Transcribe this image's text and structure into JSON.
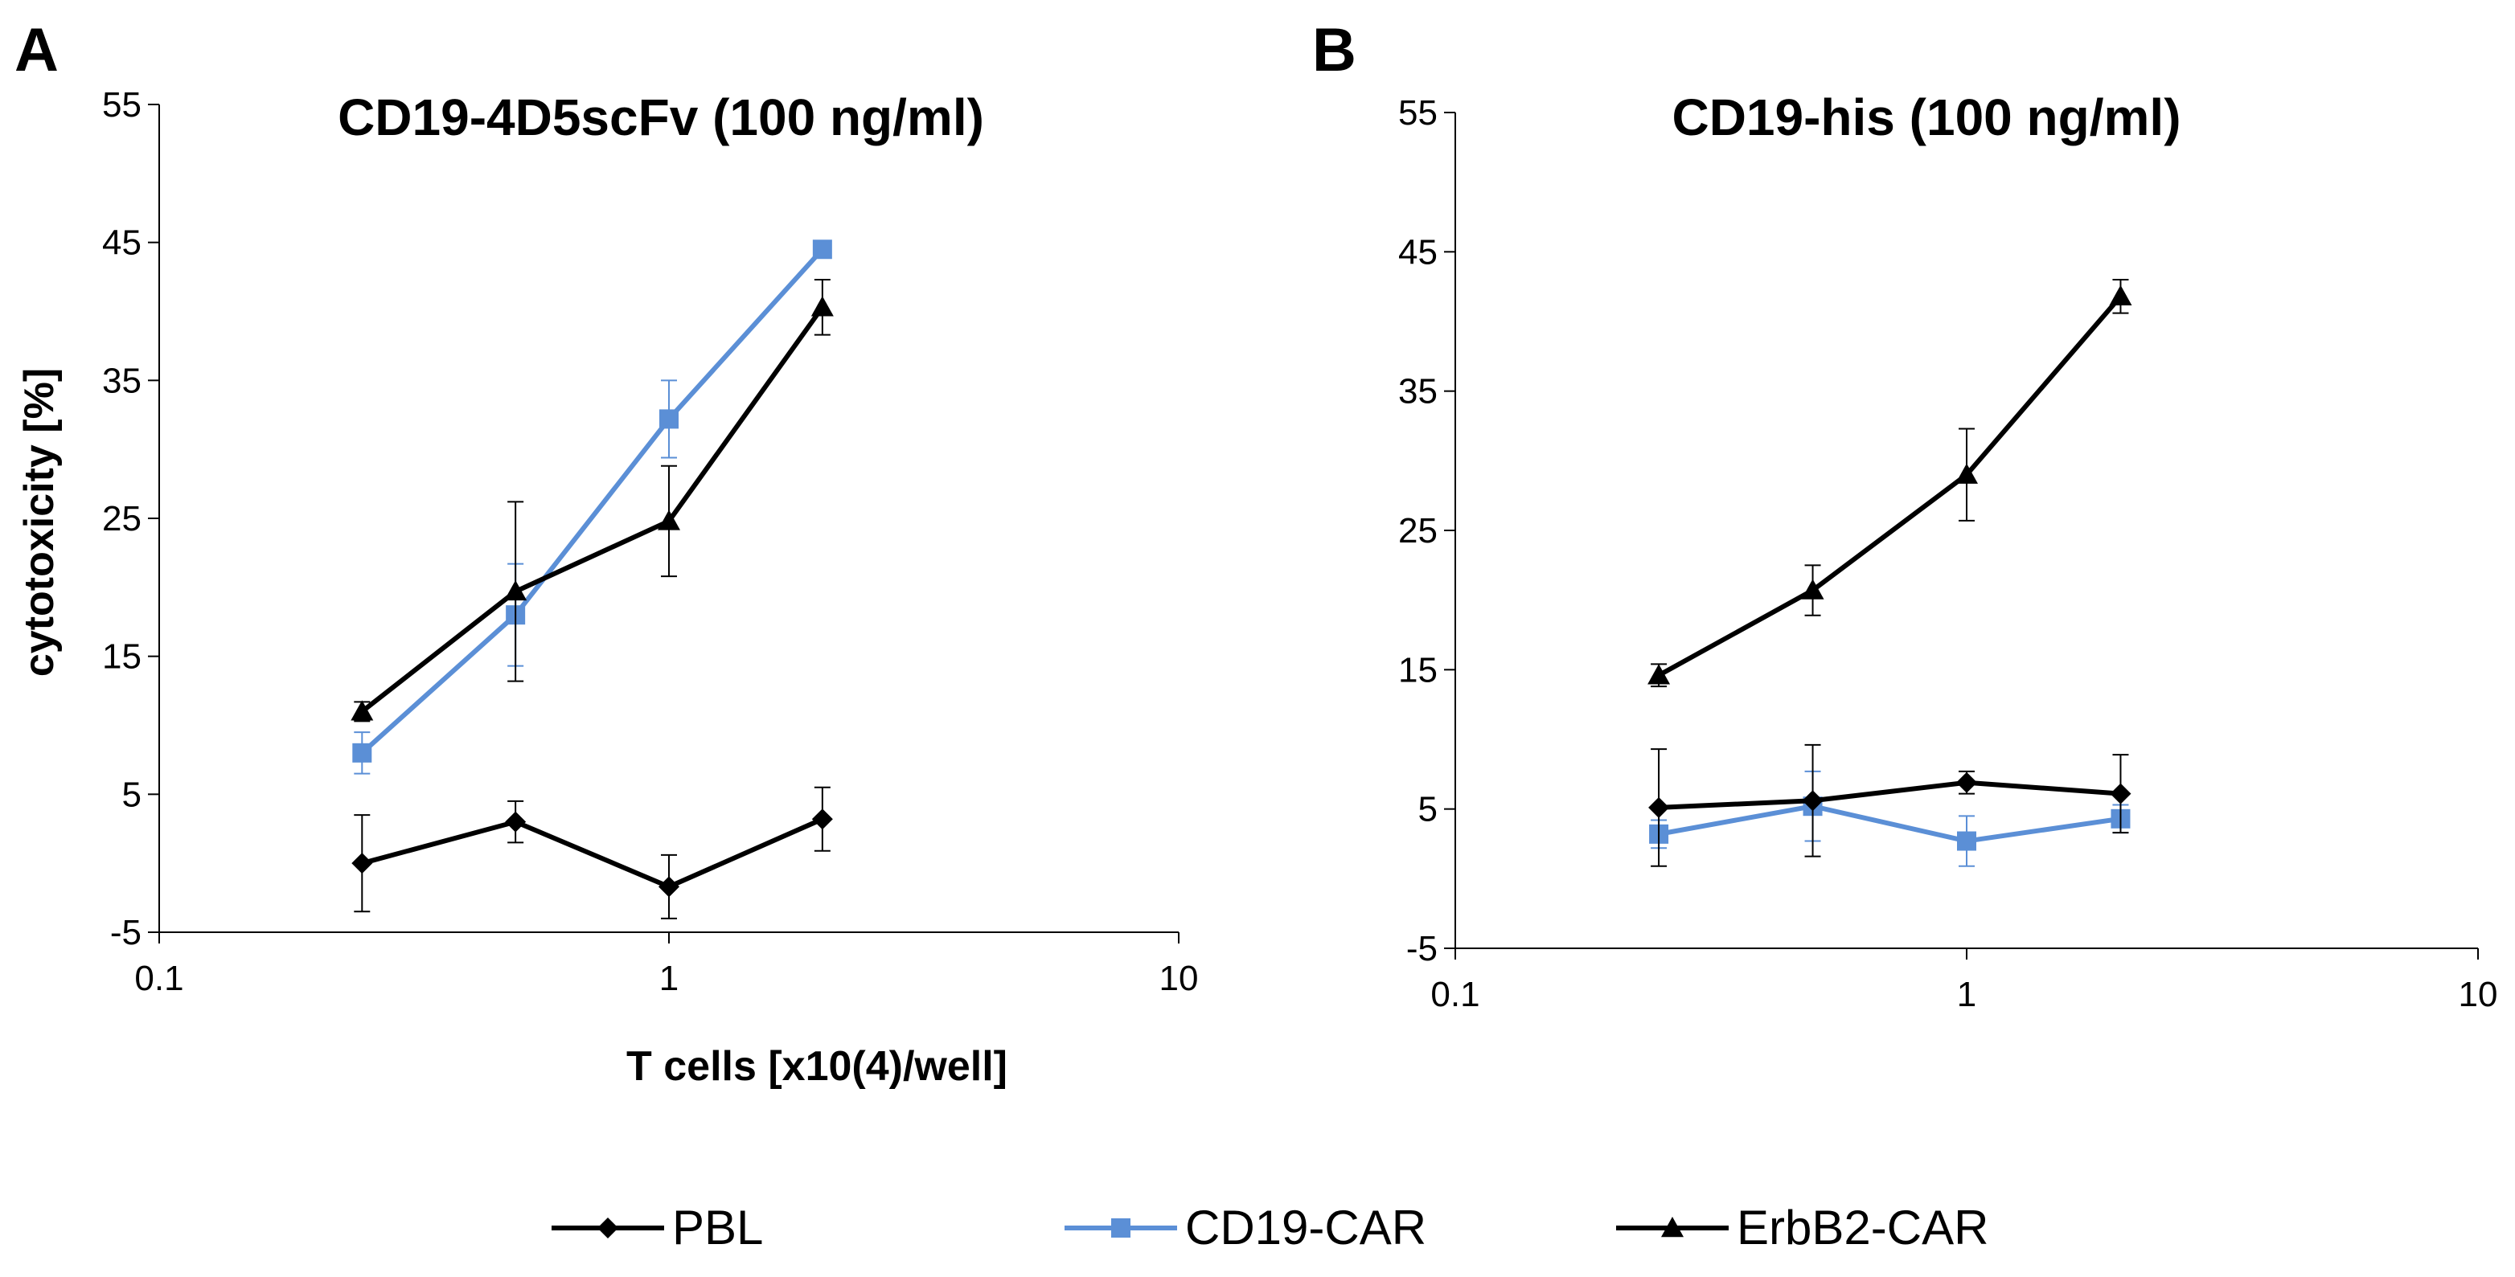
{
  "figure": {
    "shared_xlabel": "T cells [x10(4)/well]",
    "shared_ylabel": "cytotoxicity [%]",
    "legend": [
      {
        "label": "PBL",
        "color": "#000000",
        "marker": "diamond"
      },
      {
        "label": "CD19-CAR",
        "color": "#5b8fd6",
        "marker": "square"
      },
      {
        "label": "ErbB2-CAR",
        "color": "#000000",
        "marker": "triangle"
      }
    ]
  },
  "chart_data": [
    {
      "type": "line",
      "panel": "A",
      "title": "CD19-4D5scFv (100 ng/ml)",
      "xscale": "log",
      "xlim": [
        0.1,
        10
      ],
      "xticks": [
        "0.1",
        "1",
        "10"
      ],
      "ylim": [
        -5,
        55
      ],
      "yticks": [
        "-5",
        "5",
        "15",
        "25",
        "35",
        "45",
        "55"
      ],
      "x": [
        0.25,
        0.5,
        1,
        2
      ],
      "series": [
        {
          "name": "PBL",
          "color": "#000000",
          "marker": "diamond",
          "values": [
            0,
            3,
            -1.7,
            3.2
          ],
          "errors": [
            3.5,
            1.5,
            2.3,
            2.3
          ]
        },
        {
          "name": "CD19-CAR",
          "color": "#5b8fd6",
          "marker": "square",
          "values": [
            8,
            18,
            32.2,
            44.5
          ],
          "errors": [
            1.5,
            3.7,
            2.8,
            0.5
          ]
        },
        {
          "name": "ErbB2-CAR",
          "color": "#000000",
          "marker": "triangle",
          "values": [
            11,
            19.7,
            24.8,
            40.3
          ],
          "errors": [
            0.7,
            6.5,
            4,
            2
          ]
        }
      ]
    },
    {
      "type": "line",
      "panel": "B",
      "title": "CD19-his (100 ng/ml)",
      "xscale": "log",
      "xlim": [
        0.1,
        10
      ],
      "xticks": [
        "0.1",
        "1",
        "10"
      ],
      "ylim": [
        -5,
        55
      ],
      "yticks": [
        "-5",
        "5",
        "15",
        "25",
        "35",
        "45",
        "55"
      ],
      "x": [
        0.25,
        0.5,
        1,
        2
      ],
      "series": [
        {
          "name": "PBL",
          "color": "#000000",
          "marker": "diamond",
          "values": [
            5.1,
            5.6,
            6.9,
            6.1
          ],
          "errors": [
            4.2,
            4,
            0.8,
            2.8
          ]
        },
        {
          "name": "CD19-CAR",
          "color": "#5b8fd6",
          "marker": "square",
          "values": [
            3.2,
            5.2,
            2.7,
            4.3
          ],
          "errors": [
            1,
            2.5,
            1.8,
            1
          ]
        },
        {
          "name": "ErbB2-CAR",
          "color": "#000000",
          "marker": "triangle",
          "values": [
            14.6,
            20.7,
            29,
            41.8
          ],
          "errors": [
            0.8,
            1.8,
            3.3,
            1.2
          ]
        }
      ]
    }
  ]
}
